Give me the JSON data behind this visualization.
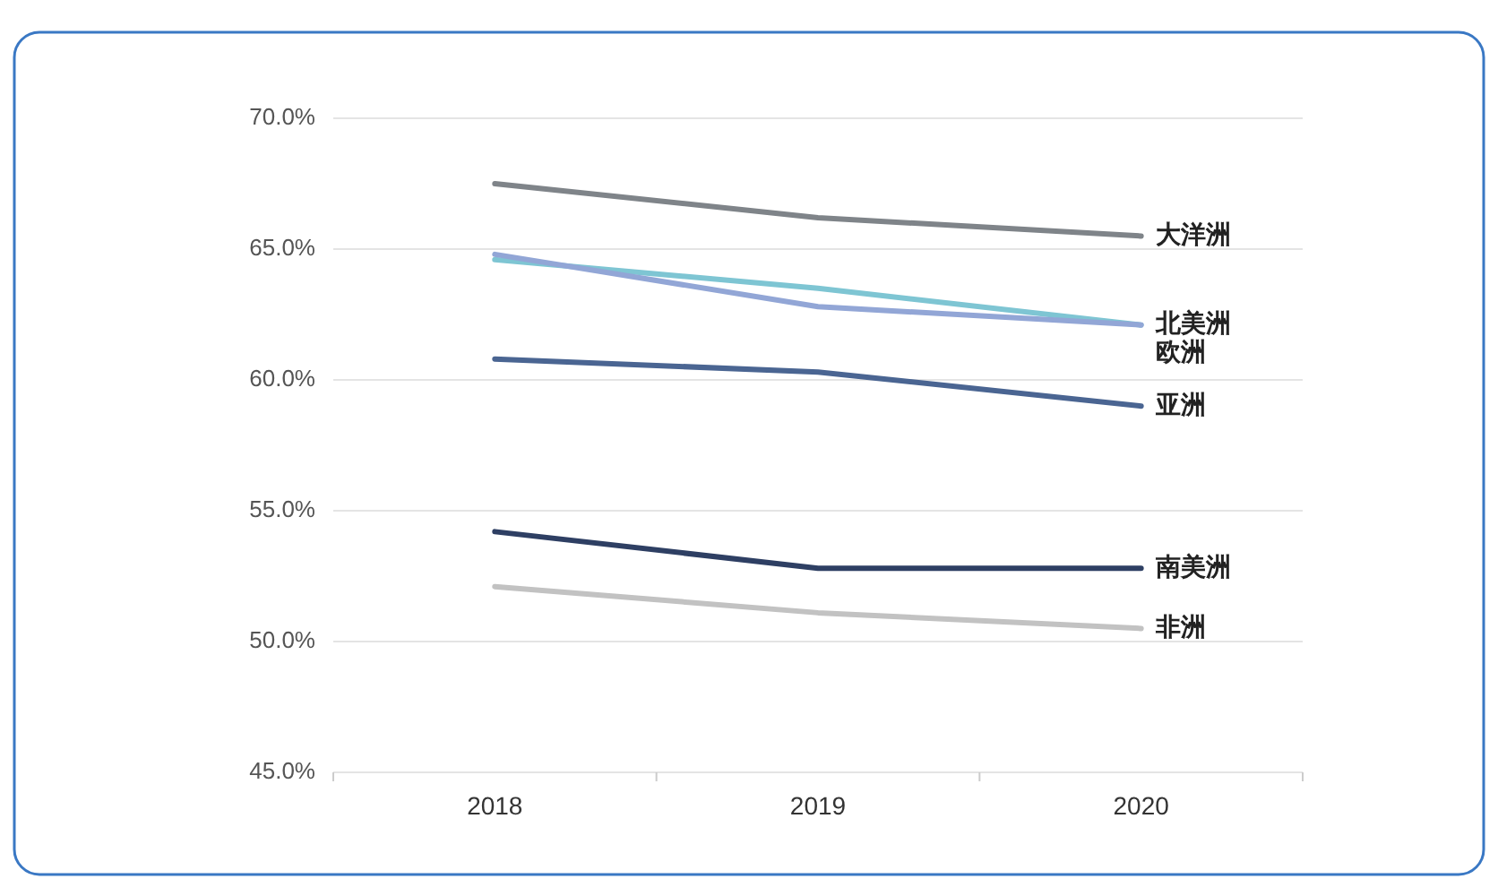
{
  "chart_data": {
    "type": "line",
    "categories": [
      "2018",
      "2019",
      "2020"
    ],
    "series": [
      {
        "name": "大洋洲",
        "color": "#7f8489",
        "values": [
          67.5,
          66.2,
          65.5
        ]
      },
      {
        "name": "北美洲",
        "color": "#7ec5d3",
        "values": [
          64.6,
          63.5,
          62.1
        ]
      },
      {
        "name": "欧洲",
        "color": "#92a6d6",
        "values": [
          64.8,
          62.8,
          62.1
        ]
      },
      {
        "name": "亚洲",
        "color": "#4a6592",
        "values": [
          60.8,
          60.3,
          59.0
        ]
      },
      {
        "name": "南美洲",
        "color": "#2e3f63",
        "values": [
          54.2,
          52.8,
          52.8
        ]
      },
      {
        "name": "非洲",
        "color": "#c2c2c2",
        "values": [
          52.1,
          51.1,
          50.5
        ]
      }
    ],
    "ylim": [
      45,
      70
    ],
    "yticks": [
      {
        "value": 45,
        "label": "45.0%"
      },
      {
        "value": 50,
        "label": "50.0%"
      },
      {
        "value": 55,
        "label": "55.0%"
      },
      {
        "value": 60,
        "label": "60.0%"
      },
      {
        "value": 65,
        "label": "65.0%"
      },
      {
        "value": 70,
        "label": "70.0%"
      }
    ],
    "grid": "y",
    "marker": "none",
    "line_style": "solid"
  }
}
